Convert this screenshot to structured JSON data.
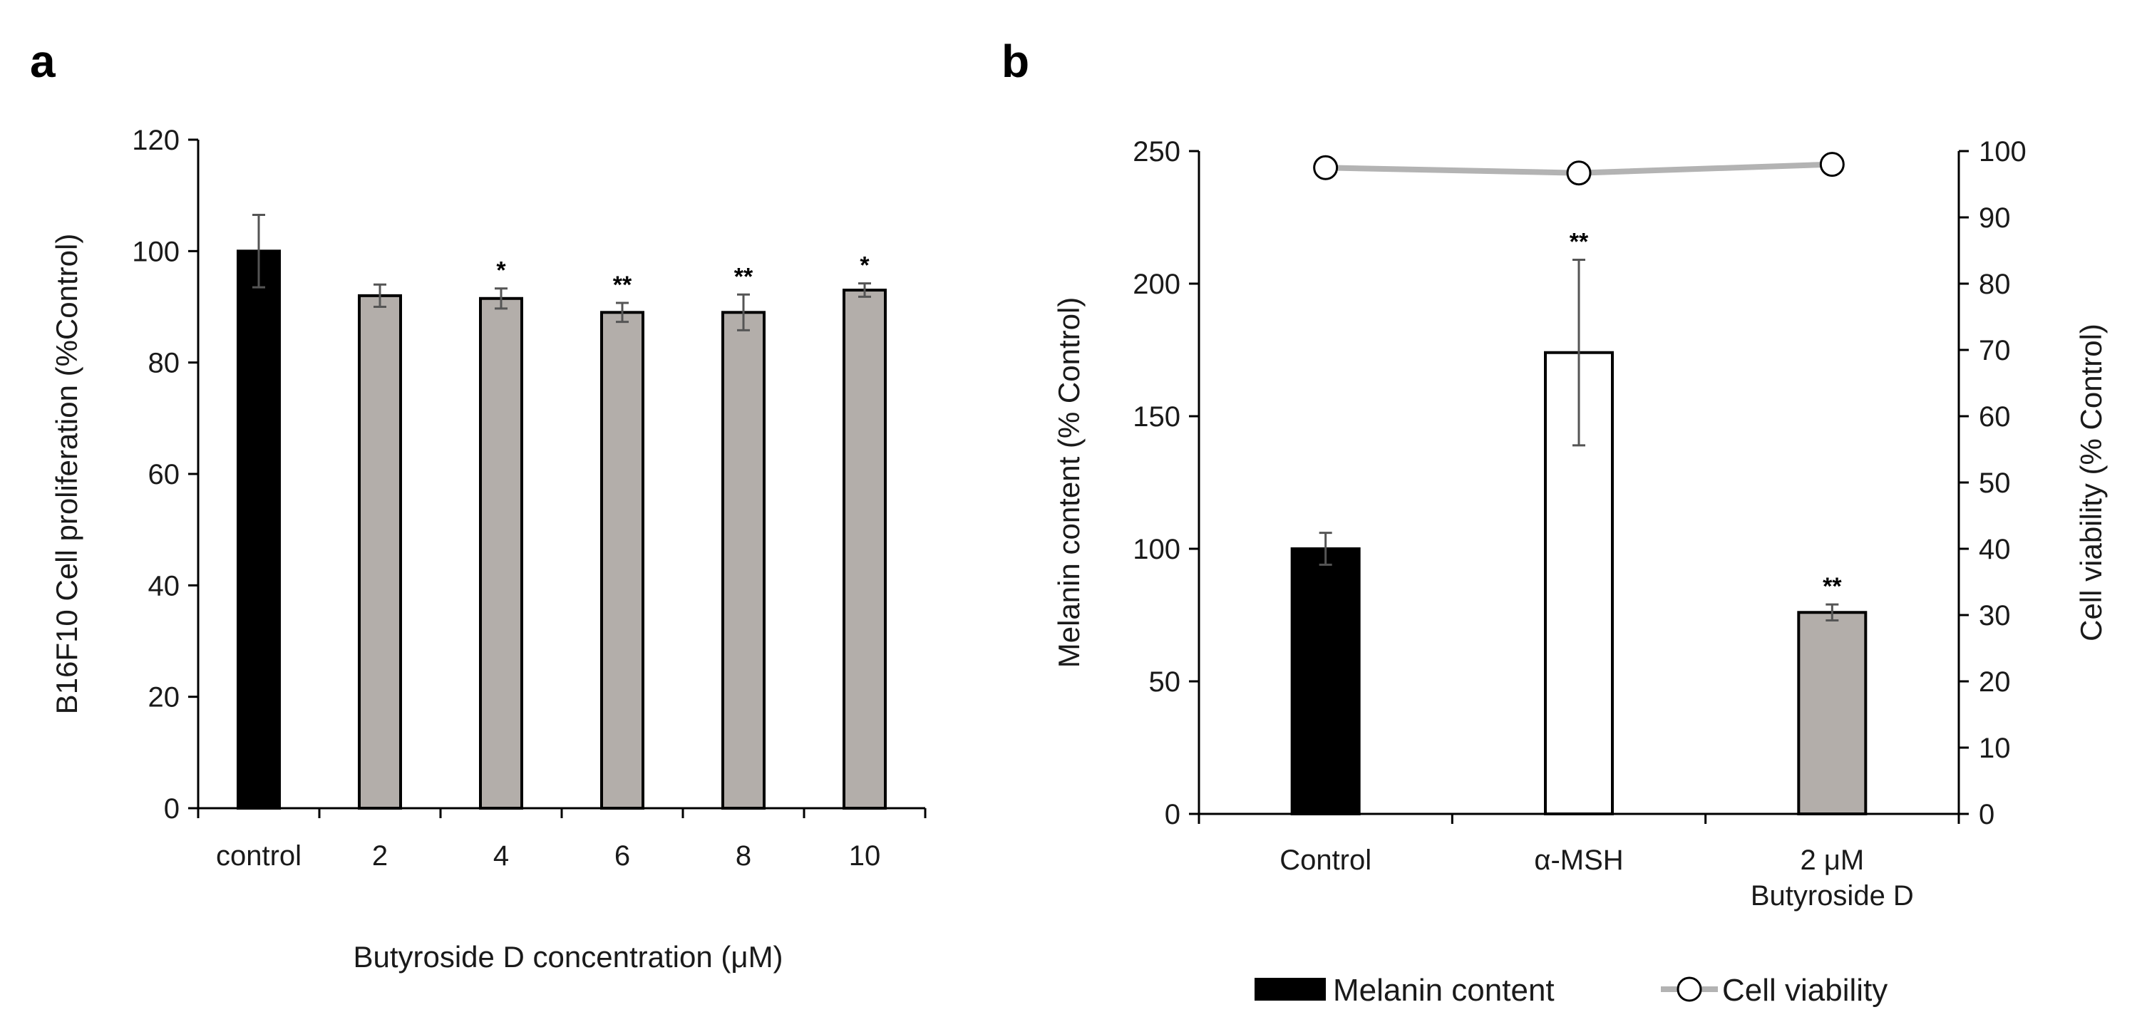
{
  "panels": {
    "a": {
      "label": "a"
    },
    "b": {
      "label": "b"
    }
  },
  "colors": {
    "control_bar": "#000000",
    "treated_bar": "#b3aeaa",
    "msh_bar": "#ffffff",
    "viability_line": "#b3b3b3",
    "error_bar": "#555555"
  },
  "chart_data": [
    {
      "panel": "a",
      "type": "bar",
      "title": "",
      "xlabel": "Butyroside D concentration (μM)",
      "ylabel": "B16F10 Cell proliferation (%Control)",
      "categories": [
        "control",
        "2",
        "4",
        "6",
        "8",
        "10"
      ],
      "values": [
        100,
        92,
        91.5,
        89,
        89,
        93
      ],
      "errors": [
        6.5,
        2,
        1.8,
        1.7,
        3.2,
        1.2
      ],
      "significance": [
        "",
        "",
        "*",
        "**",
        "**",
        "*"
      ],
      "bar_colors": [
        "control_bar",
        "treated_bar",
        "treated_bar",
        "treated_bar",
        "treated_bar",
        "treated_bar"
      ],
      "ylim": [
        0,
        120
      ],
      "yticks": [
        0,
        20,
        40,
        60,
        80,
        100,
        120
      ],
      "grid": false
    },
    {
      "panel": "b",
      "type": "bar",
      "title": "",
      "xlabel": "",
      "ylabel": "Melanin content (% Control)",
      "y2label": "Cell viability (% Control)",
      "categories": [
        "Control",
        "α-MSH",
        "2 μM\nButyroside D"
      ],
      "series": [
        {
          "name": "Melanin content",
          "type": "bar",
          "axis": "left",
          "values": [
            100,
            174,
            76
          ],
          "errors": [
            6,
            35,
            3
          ],
          "significance": [
            "",
            "**",
            "**"
          ],
          "bar_colors": [
            "control_bar",
            "msh_bar",
            "treated_bar"
          ]
        },
        {
          "name": "Cell viability",
          "type": "line",
          "axis": "right",
          "values": [
            97.5,
            96.7,
            98
          ]
        }
      ],
      "ylim": [
        0,
        250
      ],
      "yticks": [
        0,
        50,
        100,
        150,
        200,
        250
      ],
      "y2lim": [
        0,
        100
      ],
      "y2ticks": [
        0,
        10,
        20,
        30,
        40,
        50,
        60,
        70,
        80,
        90,
        100
      ],
      "legend": {
        "placement": "bottom",
        "entries": [
          "Melanin content",
          "Cell viability"
        ]
      },
      "grid": false
    }
  ]
}
